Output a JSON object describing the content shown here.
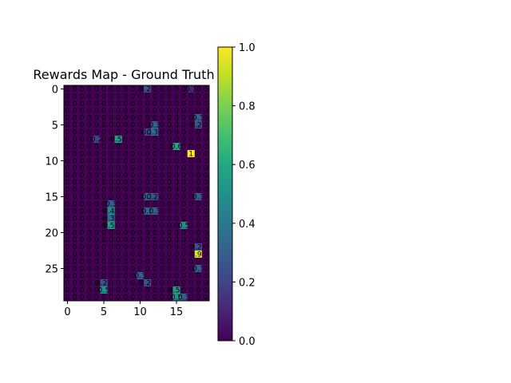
{
  "chart_data": {
    "type": "heatmap",
    "title": "Rewards Map - Ground Truth",
    "colormap": "viridis",
    "nrows": 30,
    "ncols": 20,
    "vmin": 0.0,
    "vmax": 1.0,
    "x_ticks": [
      0,
      5,
      10,
      15
    ],
    "y_ticks": [
      0,
      5,
      10,
      15,
      20,
      25
    ],
    "colorbar_ticks": [
      "0.0",
      "0.2",
      "0.4",
      "0.6",
      "0.8",
      "1.0"
    ],
    "cells": [
      {
        "r": 0,
        "c": 11,
        "v": 0.25
      },
      {
        "r": 0,
        "c": 17,
        "v": 0.1
      },
      {
        "r": 4,
        "c": 18,
        "v": 0.3
      },
      {
        "r": 5,
        "c": 18,
        "v": 0.25
      },
      {
        "r": 5,
        "c": 12,
        "v": 0.3
      },
      {
        "r": 6,
        "c": 12,
        "v": 0.35
      },
      {
        "r": 6,
        "c": 11,
        "v": 0.2
      },
      {
        "r": 7,
        "c": 7,
        "v": 0.55
      },
      {
        "r": 7,
        "c": 4,
        "v": 0.2
      },
      {
        "r": 8,
        "c": 15,
        "v": 0.6
      },
      {
        "r": 9,
        "c": 17,
        "v": 1.0
      },
      {
        "r": 15,
        "c": 11,
        "v": 0.3
      },
      {
        "r": 15,
        "c": 12,
        "v": 0.25
      },
      {
        "r": 15,
        "c": 18,
        "v": 0.3
      },
      {
        "r": 16,
        "c": 6,
        "v": 0.3
      },
      {
        "r": 17,
        "c": 6,
        "v": 0.45
      },
      {
        "r": 17,
        "c": 11,
        "v": 0.3
      },
      {
        "r": 17,
        "c": 12,
        "v": 0.3
      },
      {
        "r": 18,
        "c": 6,
        "v": 0.35
      },
      {
        "r": 19,
        "c": 6,
        "v": 0.55
      },
      {
        "r": 19,
        "c": 16,
        "v": 0.5
      },
      {
        "r": 22,
        "c": 18,
        "v": 0.25
      },
      {
        "r": 23,
        "c": 18,
        "v": 0.95
      },
      {
        "r": 25,
        "c": 18,
        "v": 0.3
      },
      {
        "r": 26,
        "c": 10,
        "v": 0.3
      },
      {
        "r": 27,
        "c": 11,
        "v": 0.25
      },
      {
        "r": 27,
        "c": 5,
        "v": 0.25
      },
      {
        "r": 28,
        "c": 5,
        "v": 0.5
      },
      {
        "r": 28,
        "c": 15,
        "v": 0.55
      },
      {
        "r": 29,
        "c": 15,
        "v": 0.5
      },
      {
        "r": 29,
        "c": 16,
        "v": 0.3
      }
    ]
  }
}
